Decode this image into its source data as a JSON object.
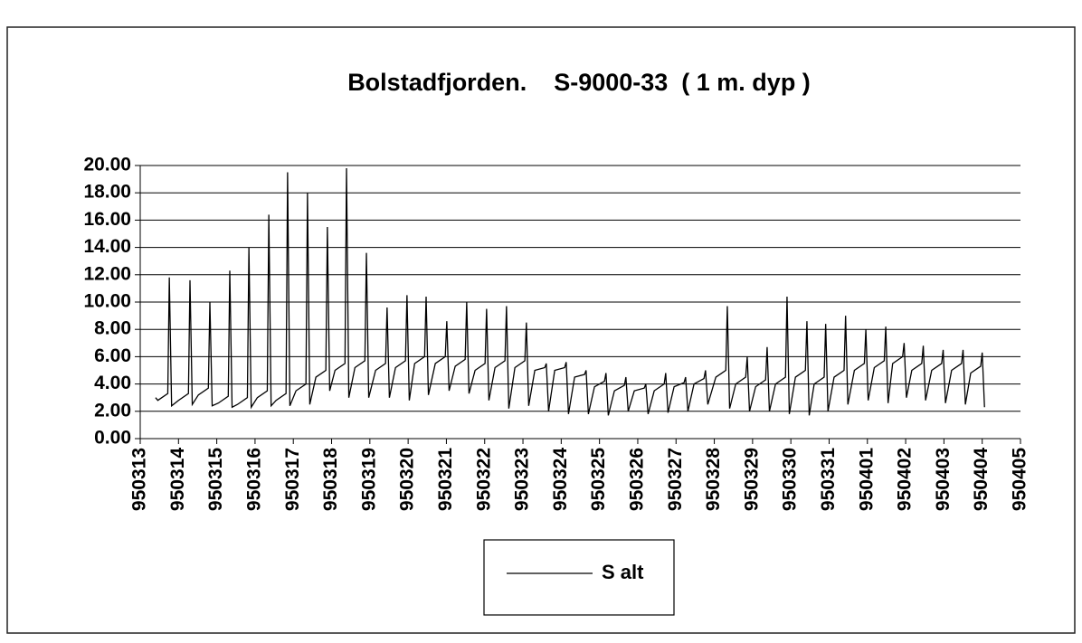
{
  "chart_data": {
    "type": "line",
    "title": "Bolstadfjorden.    S-9000-33  ( 1 m. dyp )",
    "ylim": [
      0,
      20
    ],
    "yticks": [
      {
        "value": 0,
        "label": "0.00"
      },
      {
        "value": 2,
        "label": "2.00"
      },
      {
        "value": 4,
        "label": "4.00"
      },
      {
        "value": 6,
        "label": "6.00"
      },
      {
        "value": 8,
        "label": "8.00"
      },
      {
        "value": 10,
        "label": "10.00"
      },
      {
        "value": 12,
        "label": "12.00"
      },
      {
        "value": 14,
        "label": "14.00"
      },
      {
        "value": 16,
        "label": "16.00"
      },
      {
        "value": 18,
        "label": "18.00"
      },
      {
        "value": 20,
        "label": "20.00"
      }
    ],
    "xlim": [
      0,
      23
    ],
    "xticks": [
      {
        "value": 0,
        "label": "950313"
      },
      {
        "value": 1,
        "label": "950314"
      },
      {
        "value": 2,
        "label": "950315"
      },
      {
        "value": 3,
        "label": "950316"
      },
      {
        "value": 4,
        "label": "950317"
      },
      {
        "value": 5,
        "label": "950318"
      },
      {
        "value": 6,
        "label": "950319"
      },
      {
        "value": 7,
        "label": "950320"
      },
      {
        "value": 8,
        "label": "950321"
      },
      {
        "value": 9,
        "label": "950322"
      },
      {
        "value": 10,
        "label": "950323"
      },
      {
        "value": 11,
        "label": "950324"
      },
      {
        "value": 12,
        "label": "950325"
      },
      {
        "value": 13,
        "label": "950326"
      },
      {
        "value": 14,
        "label": "950327"
      },
      {
        "value": 15,
        "label": "950328"
      },
      {
        "value": 16,
        "label": "950329"
      },
      {
        "value": 17,
        "label": "950330"
      },
      {
        "value": 18,
        "label": "950331"
      },
      {
        "value": 19,
        "label": "950401"
      },
      {
        "value": 20,
        "label": "950402"
      },
      {
        "value": 21,
        "label": "950403"
      },
      {
        "value": 22,
        "label": "950404"
      },
      {
        "value": 23,
        "label": "950405"
      }
    ],
    "grid": true,
    "x": [
      0.4,
      0.46,
      0.72,
      0.76,
      0.82,
      1.0,
      1.26,
      1.3,
      1.36,
      1.52,
      1.78,
      1.82,
      1.88,
      2.04,
      2.3,
      2.34,
      2.4,
      2.54,
      2.8,
      2.84,
      2.9,
      3.06,
      3.32,
      3.36,
      3.42,
      3.55,
      3.81,
      3.85,
      3.91,
      4.07,
      4.33,
      4.37,
      4.43,
      4.59,
      4.85,
      4.89,
      4.95,
      5.09,
      5.35,
      5.39,
      5.45,
      5.61,
      5.87,
      5.91,
      5.97,
      6.15,
      6.41,
      6.45,
      6.51,
      6.67,
      6.93,
      6.97,
      7.03,
      7.17,
      7.43,
      7.47,
      7.53,
      7.71,
      7.97,
      8.01,
      8.07,
      8.23,
      8.49,
      8.53,
      8.59,
      8.75,
      9.01,
      9.05,
      9.11,
      9.27,
      9.53,
      9.57,
      9.63,
      9.79,
      10.05,
      10.09,
      10.15,
      10.31,
      10.57,
      10.61,
      10.67,
      10.83,
      11.09,
      11.13,
      11.19,
      11.35,
      11.61,
      11.65,
      11.71,
      11.87,
      12.13,
      12.17,
      12.23,
      12.39,
      12.65,
      12.69,
      12.75,
      12.91,
      13.17,
      13.21,
      13.27,
      13.43,
      13.69,
      13.73,
      13.79,
      13.95,
      14.21,
      14.25,
      14.31,
      14.47,
      14.73,
      14.77,
      14.83,
      15.04,
      15.3,
      15.34,
      15.4,
      15.56,
      15.82,
      15.86,
      15.92,
      16.08,
      16.34,
      16.38,
      16.44,
      16.6,
      16.86,
      16.9,
      16.96,
      17.12,
      17.38,
      17.42,
      17.48,
      17.61,
      17.87,
      17.91,
      17.97,
      18.13,
      18.39,
      18.43,
      18.49,
      18.66,
      18.92,
      18.96,
      19.02,
      19.18,
      19.44,
      19.48,
      19.54,
      19.66,
      19.92,
      19.96,
      20.02,
      20.16,
      20.42,
      20.46,
      20.52,
      20.68,
      20.94,
      20.98,
      21.04,
      21.2,
      21.46,
      21.5,
      21.56,
      21.7,
      21.96,
      22.0,
      22.06
    ],
    "series": [
      {
        "name": "S alt",
        "color": "#000000",
        "values": [
          3.0,
          2.8,
          3.3,
          11.8,
          2.4,
          2.8,
          3.3,
          11.6,
          2.5,
          3.2,
          3.7,
          10.0,
          2.4,
          2.6,
          3.1,
          12.3,
          2.3,
          2.5,
          3.0,
          14.0,
          2.3,
          3.0,
          3.5,
          16.4,
          2.4,
          2.8,
          3.3,
          19.5,
          2.4,
          3.5,
          4.0,
          18.0,
          2.5,
          4.5,
          5.0,
          15.5,
          3.5,
          5.0,
          5.5,
          19.8,
          3.0,
          5.2,
          5.7,
          13.6,
          3.0,
          5.0,
          5.5,
          9.6,
          3.0,
          5.2,
          5.7,
          10.5,
          2.8,
          5.5,
          6.0,
          10.4,
          3.2,
          5.5,
          6.0,
          8.6,
          3.5,
          5.3,
          5.8,
          10.0,
          3.3,
          5.0,
          5.5,
          9.5,
          2.8,
          5.2,
          5.7,
          9.7,
          2.2,
          5.2,
          5.7,
          8.5,
          2.4,
          5.0,
          5.2,
          5.5,
          2.0,
          5.0,
          5.2,
          5.6,
          1.8,
          4.5,
          4.7,
          5.0,
          1.8,
          3.8,
          4.2,
          4.8,
          1.7,
          3.5,
          3.9,
          4.5,
          2.0,
          3.5,
          3.7,
          4.0,
          1.8,
          3.5,
          4.0,
          4.8,
          1.9,
          3.8,
          4.1,
          4.5,
          2.0,
          4.0,
          4.4,
          5.0,
          2.5,
          4.5,
          5.0,
          9.7,
          2.2,
          4.0,
          4.5,
          6.0,
          2.0,
          3.8,
          4.3,
          6.7,
          2.0,
          4.0,
          4.5,
          10.4,
          1.8,
          4.5,
          5.0,
          8.6,
          1.7,
          4.0,
          4.5,
          8.4,
          2.0,
          4.5,
          5.0,
          9.0,
          2.5,
          5.0,
          5.5,
          8.0,
          2.8,
          5.2,
          5.7,
          8.2,
          2.6,
          5.5,
          6.0,
          7.0,
          3.0,
          5.0,
          5.5,
          6.8,
          2.8,
          5.0,
          5.5,
          6.5,
          2.6,
          5.0,
          5.5,
          6.5,
          2.5,
          4.8,
          5.3,
          6.3,
          2.3
        ]
      }
    ]
  }
}
